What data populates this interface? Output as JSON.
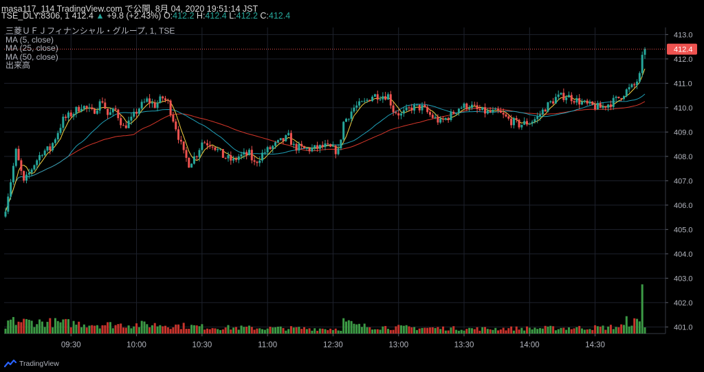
{
  "header": {
    "line1": "masa117_114 TradingView.com で公開, 8月 04, 2020 19:51:14 JST",
    "symbol": "TSE_DLY:8306, 1",
    "last": "412.4",
    "arrow": "▲",
    "change": "+9.8 (+2.43%)",
    "o_label": "O:",
    "o": "412.2",
    "h_label": "H:",
    "h": "412.4",
    "l_label": "L:",
    "l": "412.2",
    "c_label": "C:",
    "c": "412.4"
  },
  "legend": {
    "title": "三菱ＵＦＪフィナンシャル・グループ, 1, TSE",
    "ma5": "MA (5, close)",
    "ma25": "MA (25, close)",
    "ma50": "MA (50, close)",
    "volume": "出来高"
  },
  "brand": "TradingView",
  "colors": {
    "up": "#26a69a",
    "down": "#ef5350",
    "ma5": "#f5d142",
    "ma25": "#1fa0b8",
    "ma50": "#d8372a",
    "price_label": "#ef5350",
    "volume_up": "#3c9a45",
    "volume_down": "#c8342c"
  },
  "chart_data": {
    "type": "candlestick",
    "ylim": [
      400.7,
      413.5
    ],
    "yticks": [
      "413.0",
      "412.0",
      "411.0",
      "410.0",
      "409.0",
      "408.0",
      "407.0",
      "406.0",
      "405.0",
      "404.0",
      "403.0",
      "402.0",
      "401.0"
    ],
    "x_ticks": [
      "09:30",
      "10:00",
      "10:30",
      "11:00",
      "12:30",
      "13:00",
      "13:30",
      "14:00",
      "14:30"
    ],
    "last_price_label": "412.4",
    "x_first": 1,
    "x_last": 245,
    "x_tick_positions": [
      26,
      51,
      76,
      101,
      126,
      151,
      176,
      201,
      226
    ],
    "anchors": [
      [
        1,
        405.9
      ],
      [
        3,
        407.0
      ],
      [
        5,
        408.2
      ],
      [
        8,
        406.9
      ],
      [
        12,
        407.7
      ],
      [
        15,
        408.2
      ],
      [
        18,
        408.3
      ],
      [
        23,
        409.5
      ],
      [
        27,
        409.8
      ],
      [
        30,
        410.1
      ],
      [
        34,
        409.8
      ],
      [
        38,
        410.3
      ],
      [
        40,
        409.7
      ],
      [
        43,
        409.9
      ],
      [
        46,
        409.2
      ],
      [
        49,
        409.5
      ],
      [
        52,
        410.0
      ],
      [
        55,
        410.3
      ],
      [
        58,
        410.1
      ],
      [
        61,
        410.4
      ],
      [
        63,
        410.2
      ],
      [
        66,
        409.2
      ],
      [
        69,
        408.1
      ],
      [
        71,
        407.7
      ],
      [
        74,
        408.1
      ],
      [
        76,
        408.6
      ],
      [
        80,
        408.5
      ],
      [
        84,
        408.0
      ],
      [
        88,
        407.8
      ],
      [
        90,
        408.0
      ],
      [
        94,
        408.1
      ],
      [
        96,
        407.7
      ],
      [
        99,
        408.1
      ],
      [
        103,
        408.4
      ],
      [
        106,
        408.6
      ],
      [
        109,
        408.8
      ],
      [
        111,
        408.4
      ],
      [
        115,
        408.3
      ],
      [
        118,
        408.3
      ],
      [
        123,
        408.4
      ],
      [
        128,
        408.2
      ],
      [
        130,
        409.4
      ],
      [
        134,
        410.0
      ],
      [
        138,
        410.2
      ],
      [
        141,
        410.5
      ],
      [
        144,
        410.5
      ],
      [
        147,
        410.5
      ],
      [
        149,
        409.9
      ],
      [
        152,
        409.7
      ],
      [
        156,
        410.0
      ],
      [
        160,
        410.0
      ],
      [
        163,
        409.7
      ],
      [
        167,
        409.4
      ],
      [
        171,
        409.7
      ],
      [
        174,
        410.0
      ],
      [
        178,
        410.1
      ],
      [
        181,
        409.9
      ],
      [
        185,
        409.8
      ],
      [
        189,
        409.8
      ],
      [
        193,
        409.5
      ],
      [
        197,
        409.3
      ],
      [
        201,
        409.4
      ],
      [
        204,
        409.6
      ],
      [
        207,
        410.0
      ],
      [
        211,
        410.4
      ],
      [
        215,
        410.5
      ],
      [
        219,
        410.3
      ],
      [
        223,
        410.1
      ],
      [
        228,
        410.0
      ],
      [
        232,
        410.2
      ],
      [
        235,
        410.4
      ],
      [
        238,
        410.7
      ],
      [
        241,
        410.9
      ],
      [
        243,
        411.3
      ],
      [
        244,
        412.0
      ],
      [
        245,
        412.4
      ]
    ],
    "volume_anchors": [
      [
        1,
        6
      ],
      [
        2,
        18
      ],
      [
        20,
        16
      ],
      [
        40,
        13
      ],
      [
        60,
        13
      ],
      [
        80,
        9
      ],
      [
        100,
        8
      ],
      [
        129,
        7
      ],
      [
        130,
        18
      ],
      [
        135,
        11
      ],
      [
        150,
        9
      ],
      [
        180,
        7
      ],
      [
        210,
        8
      ],
      [
        230,
        9
      ],
      [
        237,
        11
      ],
      [
        238,
        18
      ],
      [
        243,
        16
      ],
      [
        244,
        110
      ],
      [
        245,
        9
      ]
    ],
    "volume_scale_max": 115,
    "ma_periods": [
      5,
      25,
      50
    ]
  }
}
